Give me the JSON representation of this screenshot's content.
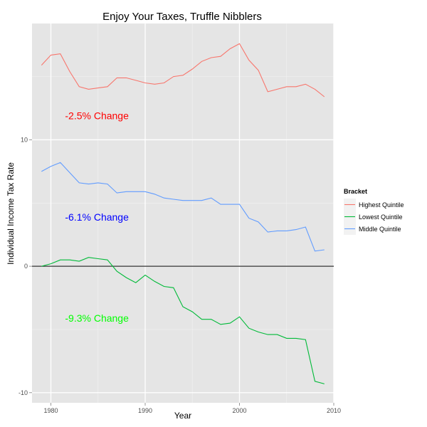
{
  "chart_data": {
    "type": "line",
    "title": "Enjoy Your Taxes, Truffle Nibblers",
    "xlabel": "Year",
    "ylabel": "Individual Income Tax Rate",
    "xlim": [
      1978,
      2010
    ],
    "ylim": [
      -10.8,
      19.2
    ],
    "x_ticks": [
      1980,
      1990,
      2000,
      2010
    ],
    "y_ticks": [
      -10,
      0,
      10
    ],
    "grid": true,
    "hline": 0,
    "legend_position": "right",
    "legend_title": "Bracket",
    "x": [
      1979,
      1980,
      1981,
      1982,
      1983,
      1984,
      1985,
      1986,
      1987,
      1988,
      1989,
      1990,
      1991,
      1992,
      1993,
      1994,
      1995,
      1996,
      1997,
      1998,
      1999,
      2000,
      2001,
      2002,
      2003,
      2004,
      2005,
      2006,
      2007,
      2008,
      2009
    ],
    "series": [
      {
        "name": "Highest Quintile",
        "color": "#F8766D",
        "values": [
          15.9,
          16.7,
          16.8,
          15.4,
          14.2,
          14.0,
          14.1,
          14.2,
          14.9,
          14.9,
          14.7,
          14.5,
          14.4,
          14.5,
          15.0,
          15.1,
          15.6,
          16.2,
          16.5,
          16.6,
          17.2,
          17.6,
          16.3,
          15.5,
          13.8,
          14.0,
          14.2,
          14.2,
          14.4,
          14.0,
          13.4
        ]
      },
      {
        "name": "Lowest Quintile",
        "color": "#00BA38",
        "values": [
          0.0,
          0.2,
          0.5,
          0.5,
          0.4,
          0.7,
          0.6,
          0.5,
          -0.4,
          -0.9,
          -1.3,
          -0.7,
          -1.2,
          -1.6,
          -1.7,
          -3.2,
          -3.6,
          -4.2,
          -4.2,
          -4.6,
          -4.5,
          -4.0,
          -4.9,
          -5.2,
          -5.4,
          -5.4,
          -5.7,
          -5.7,
          -5.8,
          -9.1,
          -9.3
        ]
      },
      {
        "name": "Middle Quintile",
        "color": "#619CFF",
        "values": [
          7.5,
          7.9,
          8.2,
          7.4,
          6.6,
          6.5,
          6.6,
          6.5,
          5.8,
          5.9,
          5.9,
          5.9,
          5.7,
          5.4,
          5.3,
          5.2,
          5.2,
          5.2,
          5.4,
          4.9,
          4.9,
          4.9,
          3.8,
          3.5,
          2.7,
          2.8,
          2.8,
          2.9,
          3.1,
          1.2,
          1.3
        ]
      }
    ],
    "annotations": [
      {
        "text": "-2.5% Change",
        "x": 1981.5,
        "y": 11.9,
        "color": "#FF0000"
      },
      {
        "text": "-6.1% Change",
        "x": 1981.5,
        "y": 3.9,
        "color": "#0000FF"
      },
      {
        "text": "-9.3% Change",
        "x": 1981.5,
        "y": -4.1,
        "color": "#00FF00"
      }
    ]
  }
}
